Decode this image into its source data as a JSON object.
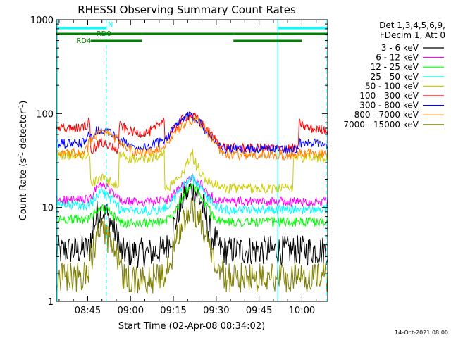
{
  "chart_data": {
    "type": "line",
    "title": "RHESSI Observing Summary Count Rates",
    "xlabel": "Start Time (02-Apr-08 08:34:02)",
    "ylabel_parts": [
      "Count Rate (s",
      "-1",
      " detector",
      "-1",
      ")"
    ],
    "yscale": "log",
    "ylim": [
      1,
      1000
    ],
    "xlim_minutes": [
      0,
      95
    ],
    "y_ticks": [
      1,
      10,
      100,
      1000
    ],
    "y_tick_labels": [
      "1",
      "10",
      "100",
      "1000"
    ],
    "x_ticks_minutes": [
      10.97,
      25.97,
      40.97,
      55.97,
      70.97,
      85.97
    ],
    "x_tick_labels": [
      "08:45",
      "09:00",
      "09:15",
      "09:30",
      "09:45",
      "10:00"
    ],
    "legend_header": [
      "Det 1,3,4,5,6,9,",
      "FDecim 1, Att 0"
    ],
    "legend_placement": "top-right",
    "timestamp": "14-Oct-2021 08:00",
    "flags": [
      {
        "name": "N",
        "color": "#00ffff",
        "segments": [
          [
            0,
            17.5
          ],
          [
            77.5,
            95
          ]
        ]
      },
      {
        "name": "RD0",
        "color": "#008000",
        "segments": [
          [
            0,
            30
          ],
          [
            30,
            62
          ],
          [
            62,
            85
          ],
          [
            85,
            95
          ]
        ]
      },
      {
        "name": "RD4",
        "color": "#008000",
        "segments": [
          [
            12,
            30
          ],
          [
            62,
            86
          ]
        ]
      }
    ],
    "vertical_lines_minutes": [
      {
        "x": 0.3,
        "style": "solid"
      },
      {
        "x": 17.5,
        "style": "dashed"
      },
      {
        "x": 77.5,
        "style": "solid"
      },
      {
        "x": 94.5,
        "style": "dashed"
      }
    ],
    "series": [
      {
        "name": "3 - 6 keV",
        "color": "#000000",
        "values": [
          3.5,
          3.4,
          3.5,
          3.5,
          3.5,
          3.5,
          3.5,
          3.5,
          3.5,
          3.6,
          3.6,
          3.6,
          5.0,
          7.0,
          8.5,
          9.0,
          9.0,
          8.5,
          7.5,
          6.5,
          5.5,
          5.0,
          3.5,
          3.3,
          3.3,
          3.3,
          3.3,
          3.3,
          3.3,
          3.3,
          3.3,
          3.3,
          3.3,
          3.3,
          3.4,
          3.4,
          3.5,
          3.6,
          3.8,
          4.2,
          5.0,
          6.5,
          8.0,
          10.0,
          12.0,
          14.0,
          15.0,
          15.5,
          15.0,
          14.0,
          12.0,
          10.0,
          8.0,
          6.0,
          5.0,
          4.5,
          4.0,
          3.6,
          3.5,
          3.5,
          3.5,
          3.5,
          3.5,
          3.5,
          3.5,
          3.5,
          3.5,
          3.5,
          3.5,
          3.5,
          3.5,
          3.5,
          3.5,
          3.5,
          3.5,
          3.5,
          3.5,
          3.5,
          3.5,
          3.5,
          3.5,
          3.5,
          3.5,
          3.5,
          3.5,
          3.5,
          3.5,
          3.5,
          3.5,
          3.5,
          3.5,
          3.5,
          3.5,
          3.5,
          3.5,
          3.5
        ]
      },
      {
        "name": "6 - 12 keV",
        "color": "#ff00ff",
        "values": [
          12.0,
          12.0,
          12.0,
          12.0,
          12.0,
          12.0,
          12.0,
          12.0,
          12.0,
          12.0,
          12.0,
          12.0,
          13.0,
          15.0,
          16.5,
          17.0,
          17.0,
          16.5,
          15.5,
          14.5,
          13.5,
          13.0,
          12.0,
          11.5,
          11.5,
          11.5,
          11.5,
          11.5,
          11.5,
          11.5,
          11.5,
          11.5,
          11.5,
          11.5,
          11.6,
          11.7,
          11.8,
          11.9,
          12.0,
          12.3,
          13.0,
          14.0,
          15.0,
          16.0,
          17.5,
          19.0,
          20.0,
          20.5,
          20.0,
          19.0,
          17.5,
          16.0,
          15.0,
          14.0,
          13.0,
          12.5,
          12.0,
          11.8,
          11.5,
          11.5,
          11.5,
          11.5,
          11.5,
          11.5,
          11.5,
          11.5,
          11.5,
          11.5,
          11.5,
          11.5,
          11.5,
          11.5,
          11.5,
          11.5,
          11.5,
          11.5,
          11.5,
          11.5,
          11.5,
          11.5,
          11.5,
          11.5,
          11.5,
          11.5,
          11.5,
          11.5,
          11.5,
          11.5,
          11.5,
          11.5,
          11.5,
          11.5,
          11.5,
          11.5,
          11.5,
          11.5
        ]
      },
      {
        "name": "12 - 25 keV",
        "color": "#00ff00",
        "values": [
          7.5,
          7.5,
          7.5,
          7.5,
          7.5,
          7.5,
          7.5,
          7.5,
          7.5,
          7.5,
          7.5,
          7.5,
          8.0,
          9.0,
          9.5,
          9.8,
          9.8,
          9.5,
          9.0,
          8.5,
          8.0,
          7.8,
          7.0,
          6.8,
          6.8,
          6.8,
          6.8,
          6.8,
          6.8,
          6.8,
          6.8,
          6.8,
          6.8,
          6.8,
          6.9,
          7.0,
          7.1,
          7.2,
          7.4,
          7.8,
          8.5,
          9.5,
          10.5,
          12.0,
          13.5,
          15.0,
          16.0,
          16.5,
          16.0,
          15.0,
          13.5,
          12.0,
          10.5,
          9.5,
          8.5,
          8.0,
          7.5,
          7.2,
          7.0,
          7.0,
          7.0,
          7.0,
          7.0,
          7.0,
          7.0,
          7.0,
          7.0,
          7.0,
          7.0,
          7.0,
          7.0,
          7.0,
          7.0,
          7.0,
          7.0,
          7.0,
          7.0,
          7.0,
          7.0,
          7.0,
          7.0,
          7.0,
          7.0,
          7.0,
          7.0,
          7.0,
          7.0,
          7.0,
          7.0,
          7.0,
          7.0,
          7.0,
          7.0,
          7.0,
          7.0,
          7.0
        ]
      },
      {
        "name": "25 - 50 keV",
        "color": "#00ffff",
        "values": [
          10.5,
          10.5,
          10.5,
          10.5,
          10.5,
          10.5,
          10.5,
          10.5,
          10.5,
          10.5,
          10.5,
          10.5,
          11.5,
          13.0,
          14.0,
          14.5,
          14.5,
          14.0,
          13.0,
          12.0,
          11.0,
          10.5,
          9.5,
          9.2,
          9.2,
          9.2,
          9.2,
          9.2,
          9.2,
          9.2,
          9.2,
          9.2,
          9.2,
          9.2,
          9.3,
          9.4,
          9.6,
          9.8,
          10.0,
          10.5,
          11.5,
          12.5,
          14.0,
          15.5,
          17.0,
          18.5,
          19.5,
          20.0,
          19.5,
          18.5,
          17.0,
          15.5,
          14.0,
          12.5,
          11.5,
          10.8,
          10.2,
          9.8,
          9.5,
          9.5,
          9.5,
          9.5,
          9.5,
          9.5,
          9.5,
          9.5,
          9.5,
          9.5,
          9.5,
          9.5,
          9.5,
          9.5,
          9.5,
          9.5,
          9.5,
          9.5,
          9.5,
          9.5,
          9.5,
          9.5,
          9.5,
          9.5,
          9.5,
          9.5,
          9.5,
          9.5,
          9.5,
          9.5,
          9.5,
          9.5,
          9.5,
          9.5,
          9.5,
          9.5,
          9.5,
          9.5
        ]
      },
      {
        "name": "50 - 100 keV",
        "color": "#cccc00",
        "values": [
          36,
          36,
          36,
          36,
          36,
          36,
          36,
          36,
          36,
          36,
          36,
          36,
          18,
          19,
          20,
          20.5,
          20.5,
          20,
          19,
          18,
          17.5,
          17,
          36,
          35,
          34,
          33,
          33,
          32.5,
          32.5,
          32.5,
          32.5,
          33,
          33,
          34,
          35,
          36,
          37,
          38,
          16,
          17,
          18,
          19.5,
          21,
          23,
          25,
          28,
          32,
          38,
          32,
          27,
          24,
          22,
          20,
          19,
          18,
          17.5,
          17,
          16.5,
          16,
          16,
          16,
          16,
          16,
          16,
          16,
          16,
          16,
          16,
          16,
          16,
          16,
          16,
          16,
          16,
          16,
          16,
          16,
          16,
          16,
          16,
          16,
          16,
          16,
          34,
          34,
          34,
          34,
          34,
          34,
          34,
          34,
          34,
          34,
          34,
          34,
          34
        ]
      },
      {
        "name": "100 - 300 keV",
        "color": "#ff0000",
        "values": [
          70,
          70,
          70,
          70,
          70,
          70,
          70,
          70,
          70,
          72,
          75,
          85,
          40,
          44,
          47,
          49,
          49,
          48,
          46,
          44,
          42,
          40,
          75,
          72,
          68,
          66,
          64,
          63,
          62,
          62,
          62,
          63,
          64,
          66,
          68,
          72,
          78,
          90,
          55,
          58,
          62,
          68,
          75,
          82,
          88,
          92,
          95,
          94,
          92,
          88,
          82,
          76,
          70,
          64,
          58,
          54,
          50,
          47,
          45,
          44,
          43,
          43,
          43,
          43,
          43,
          43,
          43,
          43,
          43,
          43,
          43,
          43,
          43,
          43,
          43,
          43,
          43,
          43,
          43,
          43,
          43,
          43,
          43,
          43,
          43,
          78,
          75,
          72,
          70,
          69,
          68,
          68,
          68,
          68,
          68,
          68
        ]
      },
      {
        "name": "300 - 800 keV",
        "color": "#0000ff",
        "values": [
          48,
          48,
          48,
          48,
          48,
          48,
          48,
          48,
          48,
          49,
          52,
          58,
          60,
          63,
          66,
          67,
          67,
          66,
          64,
          61,
          58,
          55,
          52,
          50,
          48,
          46,
          45,
          44,
          44,
          44,
          44,
          44,
          45,
          46,
          47,
          49,
          51,
          53,
          56,
          60,
          65,
          70,
          76,
          82,
          87,
          91,
          93,
          93,
          91,
          87,
          81,
          75,
          68,
          62,
          56,
          51,
          47,
          45,
          43,
          42,
          42,
          42,
          42,
          42,
          42,
          42,
          42,
          42,
          42,
          42,
          42,
          42,
          42,
          42,
          42,
          42,
          42,
          42,
          42,
          42,
          42,
          42,
          42,
          42,
          42,
          48,
          48,
          48,
          48,
          48,
          48,
          48,
          48,
          48,
          48,
          48
        ]
      },
      {
        "name": "800 - 7000 keV",
        "color": "#ff8000",
        "values": [
          38,
          38,
          38,
          38,
          38,
          38,
          38,
          38,
          38,
          39,
          42,
          50,
          55,
          59,
          62,
          63,
          63,
          62,
          60,
          57,
          54,
          51,
          48,
          46,
          44,
          42,
          40,
          39,
          39,
          38.5,
          38.5,
          38.5,
          39,
          40,
          41,
          43,
          45,
          47,
          50,
          54,
          58,
          63,
          68,
          73,
          78,
          82,
          84,
          84,
          82,
          78,
          72,
          66,
          60,
          54,
          49,
          45,
          41,
          39,
          37,
          36,
          36,
          36,
          36,
          36,
          36,
          36,
          36,
          36,
          36,
          36,
          36,
          36,
          36,
          36,
          36,
          36,
          36,
          36,
          36,
          36,
          36,
          36,
          36,
          38,
          38,
          38,
          38,
          38,
          38,
          38,
          38,
          38,
          38,
          38
        ]
      },
      {
        "name": "7000 - 15000 keV",
        "color": "#808000",
        "values": [
          1.8,
          1.8,
          1.8,
          1.8,
          1.8,
          1.8,
          1.8,
          1.8,
          1.8,
          1.8,
          1.9,
          2.0,
          3.0,
          4.0,
          4.8,
          5.2,
          5.2,
          5.0,
          4.5,
          4.0,
          3.5,
          3.0,
          2.0,
          1.8,
          1.7,
          1.7,
          1.7,
          1.7,
          1.7,
          1.7,
          1.7,
          1.7,
          1.7,
          1.7,
          1.8,
          1.8,
          1.9,
          2.0,
          2.2,
          2.5,
          3.0,
          3.8,
          4.8,
          5.8,
          7.0,
          8.0,
          8.8,
          9.2,
          8.8,
          8.0,
          7.0,
          5.8,
          4.8,
          3.8,
          3.0,
          2.5,
          2.2,
          2.0,
          1.9,
          1.8,
          1.8,
          1.8,
          1.8,
          1.8,
          1.8,
          1.8,
          1.8,
          1.8,
          1.8,
          1.8,
          1.8,
          1.8,
          1.8,
          1.8,
          1.8,
          1.8,
          1.8,
          1.8,
          1.8,
          1.8,
          1.8,
          1.8,
          1.8,
          1.8,
          1.8,
          1.8,
          1.8,
          1.8,
          1.8,
          1.8,
          1.8,
          1.8,
          1.8,
          1.8,
          1.8,
          1.8
        ]
      }
    ]
  }
}
